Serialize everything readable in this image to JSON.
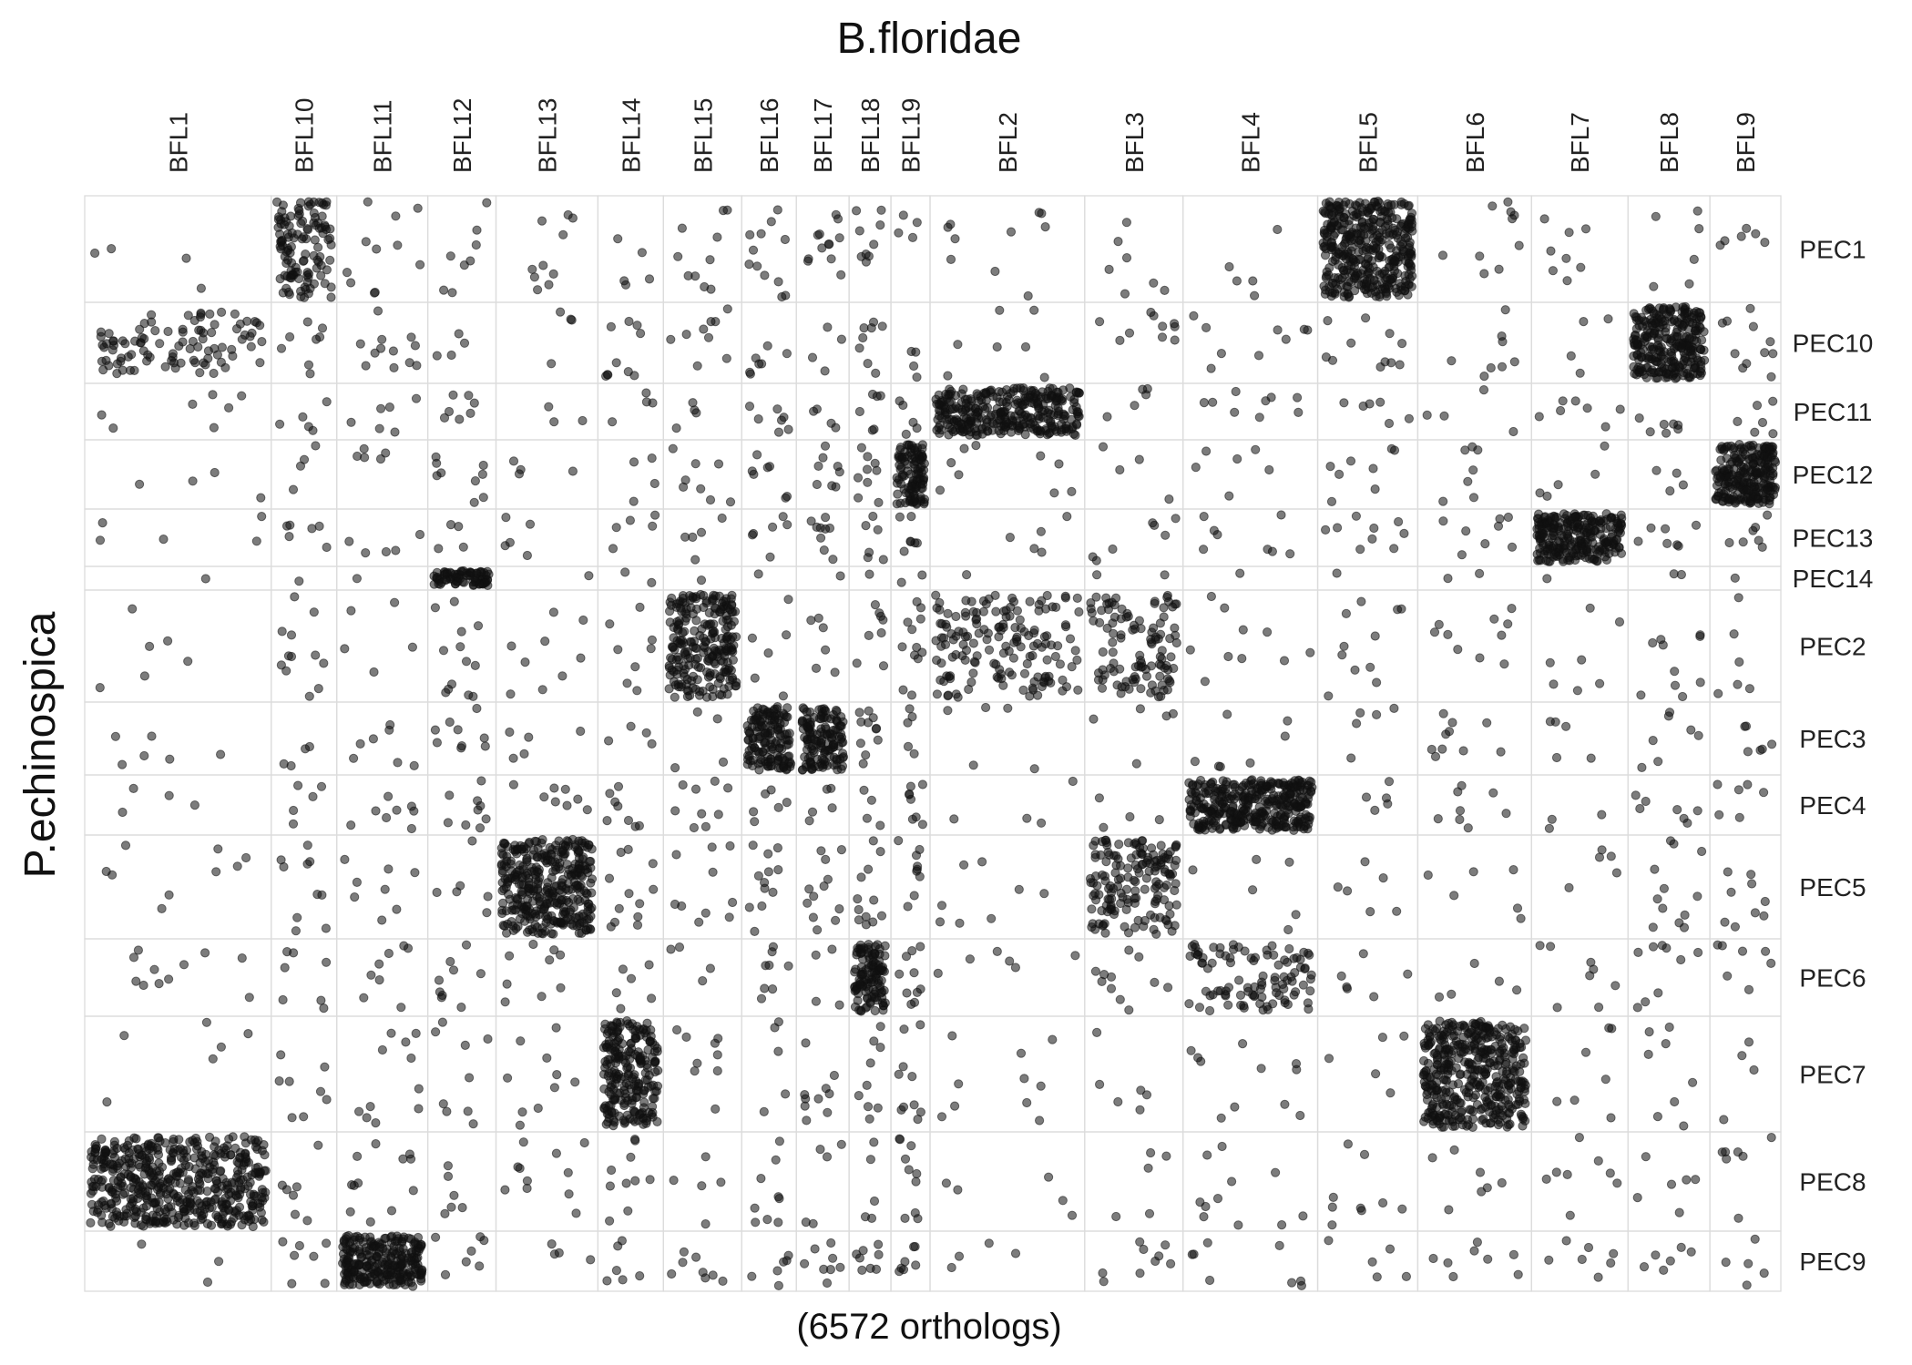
{
  "chart_data": {
    "type": "scatter",
    "title": "B.floridae",
    "xlabel": "(6572 orthologs)",
    "ylabel": "P.echinospica",
    "columns": [
      "BFL1",
      "BFL10",
      "BFL11",
      "BFL12",
      "BFL13",
      "BFL14",
      "BFL15",
      "BFL16",
      "BFL17",
      "BFL18",
      "BFL19",
      "BFL2",
      "BFL3",
      "BFL4",
      "BFL5",
      "BFL6",
      "BFL7",
      "BFL8",
      "BFL9"
    ],
    "column_widths": [
      205,
      72,
      100,
      75,
      112,
      72,
      86,
      60,
      58,
      46,
      43,
      170,
      108,
      148,
      110,
      125,
      106,
      90,
      78
    ],
    "rows": [
      "PEC1",
      "PEC10",
      "PEC11",
      "PEC12",
      "PEC13",
      "PEC14",
      "PEC2",
      "PEC3",
      "PEC4",
      "PEC5",
      "PEC6",
      "PEC7",
      "PEC8",
      "PEC9"
    ],
    "row_heights": [
      117,
      89,
      62,
      76,
      63,
      26,
      123,
      80,
      66,
      114,
      85,
      127,
      109,
      66
    ],
    "background_points_per_cell": 6,
    "clusters": [
      {
        "col": "BFL1",
        "row": "PEC8",
        "count": 520
      },
      {
        "col": "BFL1",
        "row": "PEC10",
        "count": 90,
        "sparse": true
      },
      {
        "col": "BFL10",
        "row": "PEC1",
        "count": 120
      },
      {
        "col": "BFL11",
        "row": "PEC9",
        "count": 260
      },
      {
        "col": "BFL12",
        "row": "PEC14",
        "count": 80
      },
      {
        "col": "BFL13",
        "row": "PEC5",
        "count": 360
      },
      {
        "col": "BFL14",
        "row": "PEC7",
        "count": 230
      },
      {
        "col": "BFL15",
        "row": "PEC2",
        "count": 240
      },
      {
        "col": "BFL16",
        "row": "PEC3",
        "count": 150
      },
      {
        "col": "BFL17",
        "row": "PEC3",
        "count": 140
      },
      {
        "col": "BFL18",
        "row": "PEC6",
        "count": 120
      },
      {
        "col": "BFL19",
        "row": "PEC12",
        "count": 110
      },
      {
        "col": "BFL2",
        "row": "PEC11",
        "count": 330
      },
      {
        "col": "BFL2",
        "row": "PEC2",
        "count": 160
      },
      {
        "col": "BFL3",
        "row": "PEC2",
        "count": 110
      },
      {
        "col": "BFL3",
        "row": "PEC5",
        "count": 160
      },
      {
        "col": "BFL4",
        "row": "PEC4",
        "count": 360
      },
      {
        "col": "BFL4",
        "row": "PEC6",
        "count": 100
      },
      {
        "col": "BFL5",
        "row": "PEC1",
        "count": 400
      },
      {
        "col": "BFL6",
        "row": "PEC7",
        "count": 430
      },
      {
        "col": "BFL7",
        "row": "PEC13",
        "count": 260
      },
      {
        "col": "BFL8",
        "row": "PEC10",
        "count": 280
      },
      {
        "col": "BFL9",
        "row": "PEC12",
        "count": 240
      }
    ]
  }
}
